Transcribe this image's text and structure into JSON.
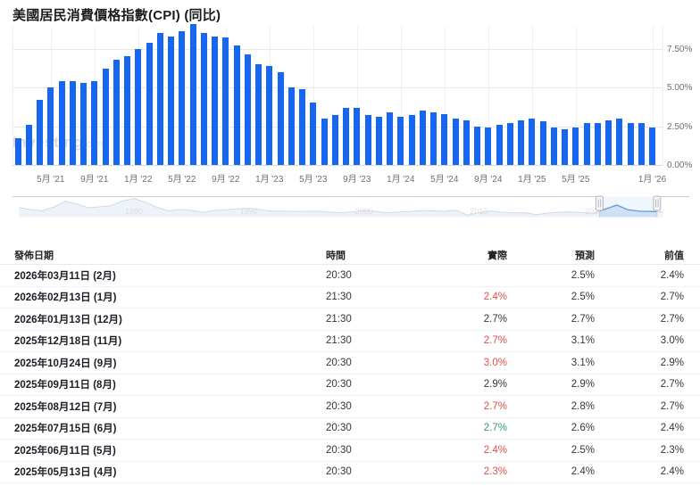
{
  "page": {
    "title": "美國居民消費價格指數(CPI) (同比)"
  },
  "colors": {
    "bar": "#1666f2",
    "actual_worse": "#e0524a",
    "actual_better": "#2d9e68",
    "grid": "#e8e8e8",
    "axis_text": "#6b6f76",
    "nav_line_selected": "#5f9bd6",
    "nav_fill_selected": "#cfe0f4",
    "nav_line_faded": "#ccdaeb",
    "nav_fill_faded": "#eef3fa"
  },
  "watermark": {
    "main": "Investing",
    "suffix": ".com"
  },
  "chart_data": {
    "type": "bar",
    "title": "美國居民消費價格指數(CPI) (同比)",
    "ylabel": "",
    "xlabel": "",
    "ylim": [
      0,
      9.5
    ],
    "grid": true,
    "legend": "none",
    "y_ticks": [
      {
        "value": 7.5,
        "label": "7.50%"
      },
      {
        "value": 5.0,
        "label": "5.00%"
      },
      {
        "value": 2.5,
        "label": "2.50%"
      },
      {
        "value": 0.0,
        "label": "0.00%"
      }
    ],
    "categories": [
      "2021-02",
      "2021-03",
      "2021-04",
      "2021-05",
      "2021-06",
      "2021-07",
      "2021-08",
      "2021-09",
      "2021-10",
      "2021-11",
      "2021-12",
      "2022-01",
      "2022-02",
      "2022-03",
      "2022-04",
      "2022-05",
      "2022-06",
      "2022-07",
      "2022-08",
      "2022-09",
      "2022-10",
      "2022-11",
      "2022-12",
      "2023-01",
      "2023-02",
      "2023-03",
      "2023-04",
      "2023-05",
      "2023-06",
      "2023-07",
      "2023-08",
      "2023-09",
      "2023-10",
      "2023-11",
      "2023-12",
      "2024-01",
      "2024-02",
      "2024-03",
      "2024-04",
      "2024-05",
      "2024-06",
      "2024-07",
      "2024-08",
      "2024-09",
      "2024-10",
      "2024-11",
      "2024-12",
      "2025-01",
      "2025-02",
      "2025-03",
      "2025-04",
      "2025-05",
      "2025-06",
      "2025-07",
      "2025-08",
      "2025-09",
      "2025-11",
      "2025-12",
      "2026-01"
    ],
    "values": [
      1.7,
      2.6,
      4.2,
      5.0,
      5.4,
      5.4,
      5.3,
      5.4,
      6.2,
      6.8,
      7.0,
      7.5,
      7.9,
      8.5,
      8.3,
      8.6,
      9.1,
      8.5,
      8.3,
      8.2,
      7.7,
      7.1,
      6.5,
      6.4,
      6.0,
      5.0,
      4.9,
      4.0,
      3.0,
      3.2,
      3.7,
      3.7,
      3.2,
      3.1,
      3.4,
      3.1,
      3.2,
      3.5,
      3.4,
      3.3,
      3.0,
      2.9,
      2.5,
      2.4,
      2.6,
      2.7,
      2.9,
      3.0,
      2.8,
      2.4,
      2.3,
      2.4,
      2.7,
      2.7,
      2.9,
      3.0,
      2.7,
      2.7,
      2.4
    ],
    "x_ticks": [
      {
        "index": 3,
        "label": "5月 '21"
      },
      {
        "index": 7,
        "label": "9月 '21"
      },
      {
        "index": 11,
        "label": "1月 '22"
      },
      {
        "index": 15,
        "label": "5月 '22"
      },
      {
        "index": 19,
        "label": "9月 '22"
      },
      {
        "index": 23,
        "label": "1月 '23"
      },
      {
        "index": 27,
        "label": "5月 '23"
      },
      {
        "index": 31,
        "label": "9月 '23"
      },
      {
        "index": 35,
        "label": "1月 '24"
      },
      {
        "index": 39,
        "label": "5月 '24"
      },
      {
        "index": 43,
        "label": "9月 '24"
      },
      {
        "index": 47,
        "label": "1月 '25"
      },
      {
        "index": 51,
        "label": "5月 '25"
      },
      {
        "index": 58,
        "label": "1月 '26"
      }
    ],
    "navigator": {
      "decade_labels": [
        {
          "label": "1980",
          "year": 1980
        },
        {
          "label": "1990",
          "year": 1990
        },
        {
          "label": "2000",
          "year": 2000
        },
        {
          "label": "2010",
          "year": 2010
        },
        {
          "label": "2020",
          "year": 2020
        }
      ],
      "selected_range_years": [
        2020.5,
        2025.5
      ],
      "points": [
        [
          1970,
          5.9
        ],
        [
          1971,
          4.3
        ],
        [
          1972,
          3.3
        ],
        [
          1973,
          6.2
        ],
        [
          1974,
          11.0
        ],
        [
          1975,
          9.1
        ],
        [
          1976,
          5.8
        ],
        [
          1977,
          6.5
        ],
        [
          1978,
          7.6
        ],
        [
          1979,
          11.3
        ],
        [
          1980,
          13.5
        ],
        [
          1981,
          10.3
        ],
        [
          1982,
          6.2
        ],
        [
          1983,
          3.2
        ],
        [
          1984,
          4.3
        ],
        [
          1985,
          3.6
        ],
        [
          1986,
          1.9
        ],
        [
          1987,
          3.6
        ],
        [
          1988,
          4.1
        ],
        [
          1989,
          4.8
        ],
        [
          1990,
          5.4
        ],
        [
          1991,
          4.2
        ],
        [
          1992,
          3.0
        ],
        [
          1993,
          3.0
        ],
        [
          1994,
          2.6
        ],
        [
          1995,
          2.8
        ],
        [
          1996,
          3.0
        ],
        [
          1997,
          2.3
        ],
        [
          1998,
          1.6
        ],
        [
          1999,
          2.2
        ],
        [
          2000,
          3.4
        ],
        [
          2001,
          2.8
        ],
        [
          2002,
          1.6
        ],
        [
          2003,
          2.3
        ],
        [
          2004,
          2.7
        ],
        [
          2005,
          3.4
        ],
        [
          2006,
          3.2
        ],
        [
          2007,
          2.8
        ],
        [
          2008,
          3.8
        ],
        [
          2009,
          -0.4
        ],
        [
          2010,
          1.6
        ],
        [
          2011,
          3.2
        ],
        [
          2012,
          2.1
        ],
        [
          2013,
          1.5
        ],
        [
          2014,
          1.6
        ],
        [
          2015,
          0.1
        ],
        [
          2016,
          1.3
        ],
        [
          2017,
          2.1
        ],
        [
          2018,
          2.4
        ],
        [
          2019,
          1.8
        ],
        [
          2020,
          1.2
        ],
        [
          2021,
          4.7
        ],
        [
          2022,
          8.0
        ],
        [
          2023,
          4.1
        ],
        [
          2024,
          2.9
        ],
        [
          2025,
          2.7
        ],
        [
          2026,
          2.4
        ]
      ]
    }
  },
  "table": {
    "headers": {
      "date": "發佈日期",
      "time": "時間",
      "actual": "實際",
      "forecast": "預測",
      "previous": "前值"
    },
    "rows": [
      {
        "date": "2026年03月11日 (2月)",
        "time": "20:30",
        "actual": "",
        "actual_state": "none",
        "forecast": "2.5%",
        "previous": "2.4%"
      },
      {
        "date": "2026年02月13日 (1月)",
        "time": "21:30",
        "actual": "2.4%",
        "actual_state": "worse",
        "forecast": "2.5%",
        "previous": "2.7%"
      },
      {
        "date": "2026年01月13日 (12月)",
        "time": "21:30",
        "actual": "2.7%",
        "actual_state": "inline",
        "forecast": "2.7%",
        "previous": "2.7%"
      },
      {
        "date": "2025年12月18日 (11月)",
        "time": "21:30",
        "actual": "2.7%",
        "actual_state": "worse",
        "forecast": "3.1%",
        "previous": "3.0%"
      },
      {
        "date": "2025年10月24日 (9月)",
        "time": "20:30",
        "actual": "3.0%",
        "actual_state": "worse",
        "forecast": "3.1%",
        "previous": "2.9%"
      },
      {
        "date": "2025年09月11日 (8月)",
        "time": "20:30",
        "actual": "2.9%",
        "actual_state": "inline",
        "forecast": "2.9%",
        "previous": "2.7%"
      },
      {
        "date": "2025年08月12日 (7月)",
        "time": "20:30",
        "actual": "2.7%",
        "actual_state": "worse",
        "forecast": "2.8%",
        "previous": "2.7%"
      },
      {
        "date": "2025年07月15日 (6月)",
        "time": "20:30",
        "actual": "2.7%",
        "actual_state": "better",
        "forecast": "2.6%",
        "previous": "2.4%"
      },
      {
        "date": "2025年06月11日 (5月)",
        "time": "20:30",
        "actual": "2.4%",
        "actual_state": "worse",
        "forecast": "2.5%",
        "previous": "2.3%"
      },
      {
        "date": "2025年05月13日 (4月)",
        "time": "20:30",
        "actual": "2.3%",
        "actual_state": "worse",
        "forecast": "2.4%",
        "previous": "2.4%"
      }
    ]
  }
}
